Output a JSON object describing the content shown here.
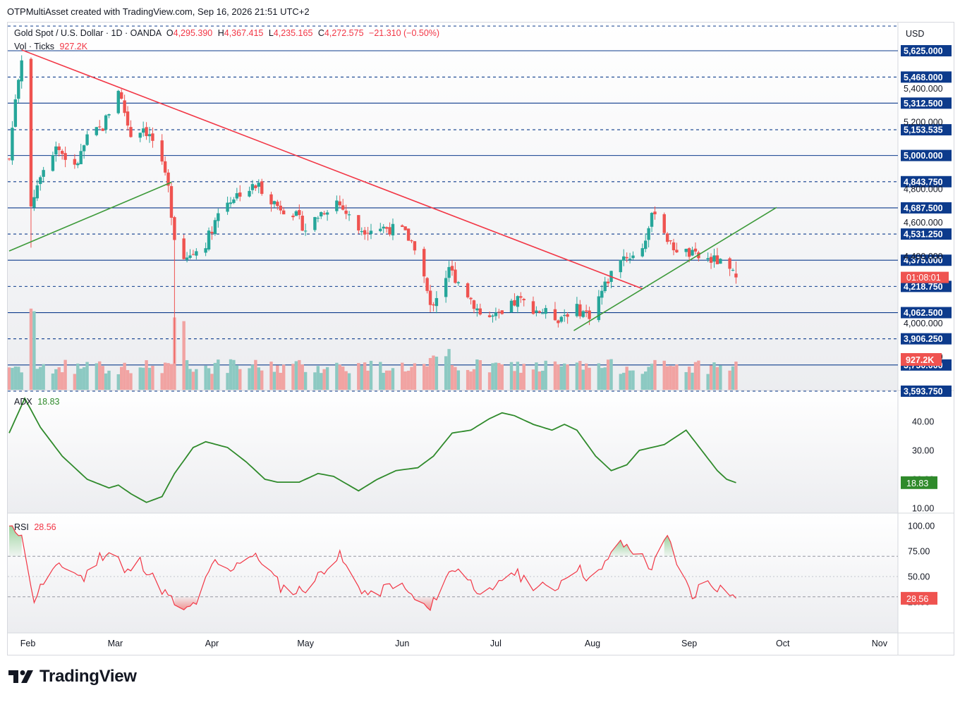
{
  "attribution": "OTPMultiAsset created with TradingView.com, Sep 16, 2026 21:51 UTC+2",
  "legend": {
    "symbol": "Gold Spot / U.S. Dollar · 1D · OANDA",
    "o_label": "O",
    "o_value": "4,295.390",
    "h_label": "H",
    "h_value": "4,367.415",
    "l_label": "L",
    "l_value": "4,235.165",
    "c_label": "C",
    "c_value": "4,272.575",
    "change": "−21.310 (−0.50%)",
    "vol_label": "Vol · Ticks",
    "vol_value": "927.2K"
  },
  "currency": "USD",
  "colors": {
    "up": "#26a69a",
    "down": "#ef5350",
    "up_vol": "#8cc9c2",
    "down_vol": "#f1a3a2",
    "level": "#0d3b8c",
    "downtrend": "#f23645",
    "uptrend": "#3d9a3a",
    "adx": "#2f8a2b",
    "rsi": "#f23645"
  },
  "price_axis": {
    "ticks": [
      "5,400.000",
      "5,200.000",
      "4,800.000",
      "4,600.000",
      "4,400.000",
      "4,000.000",
      "3,800.000"
    ],
    "levels": [
      {
        "label": "5,625.000",
        "style": "solid"
      },
      {
        "label": "5,468.000",
        "style": "dashed"
      },
      {
        "label": "5,312.500",
        "style": "solid"
      },
      {
        "label": "5,153.535",
        "style": "dashed"
      },
      {
        "label": "5,000.000",
        "style": "solid"
      },
      {
        "label": "4,843.750",
        "style": "dashed"
      },
      {
        "label": "4,687.500",
        "style": "solid"
      },
      {
        "label": "4,531.250",
        "style": "dashed"
      },
      {
        "label": "4,375.000",
        "style": "solid"
      },
      {
        "label": "4,218.750",
        "style": "dashed"
      },
      {
        "label": "4,062.500",
        "style": "solid"
      },
      {
        "label": "3,906.250",
        "style": "dashed"
      },
      {
        "label": "3,750.000",
        "style": "solid"
      },
      {
        "label": "3,593.750",
        "style": "dashed"
      }
    ],
    "last_price_countdown": "01:08:01",
    "vol_badge": "927.2K"
  },
  "adx": {
    "name": "ADX",
    "value": "18.83",
    "ticks": [
      "40.00",
      "30.00",
      "20.00",
      "10.00"
    ],
    "badge": "18.83"
  },
  "rsi": {
    "name": "RSI",
    "value": "28.56",
    "ticks": [
      "100.00",
      "75.00",
      "50.00",
      "25.00"
    ],
    "badge": "28.56"
  },
  "time_axis": [
    "Feb",
    "Mar",
    "Apr",
    "May",
    "Jun",
    "Jul",
    "Aug",
    "Sep",
    "Oct",
    "Nov"
  ],
  "brand": "TradingView",
  "chart_data": [
    {
      "type": "candlestick",
      "title": "Gold Spot / U.S. Dollar · 1D · OANDA",
      "x_range": [
        "2026-01-26",
        "2026-09-16"
      ],
      "ylim": [
        3560,
        5700
      ],
      "keyframes": [
        [
          "2026-01-26",
          4980
        ],
        [
          "2026-01-28",
          5350
        ],
        [
          "2026-01-30",
          5590
        ],
        [
          "2026-02-02",
          4700
        ],
        [
          "2026-02-05",
          4900
        ],
        [
          "2026-02-10",
          5060
        ],
        [
          "2026-02-16",
          4920
        ],
        [
          "2026-02-20",
          5100
        ],
        [
          "2026-02-25",
          5170
        ],
        [
          "2026-03-02",
          5400
        ],
        [
          "2026-03-06",
          5120
        ],
        [
          "2026-03-10",
          5170
        ],
        [
          "2026-03-14",
          5060
        ],
        [
          "2026-03-18",
          4800
        ],
        [
          "2026-03-20",
          4520
        ],
        [
          "2026-03-24",
          4380
        ],
        [
          "2026-03-30",
          4480
        ],
        [
          "2026-04-04",
          4700
        ],
        [
          "2026-04-10",
          4780
        ],
        [
          "2026-04-16",
          4820
        ],
        [
          "2026-04-22",
          4700
        ],
        [
          "2026-04-27",
          4660
        ],
        [
          "2026-05-01",
          4560
        ],
        [
          "2026-05-06",
          4660
        ],
        [
          "2026-05-11",
          4730
        ],
        [
          "2026-05-18",
          4560
        ],
        [
          "2026-05-26",
          4570
        ],
        [
          "2026-06-01",
          4550
        ],
        [
          "2026-06-06",
          4440
        ],
        [
          "2026-06-10",
          4090
        ],
        [
          "2026-06-16",
          4320
        ],
        [
          "2026-06-21",
          4200
        ],
        [
          "2026-06-27",
          4030
        ],
        [
          "2026-07-03",
          4040
        ],
        [
          "2026-07-08",
          4140
        ],
        [
          "2026-07-14",
          4080
        ],
        [
          "2026-07-21",
          4030
        ],
        [
          "2026-07-26",
          4090
        ],
        [
          "2026-07-31",
          4050
        ],
        [
          "2026-08-04",
          4190
        ],
        [
          "2026-08-10",
          4400
        ],
        [
          "2026-08-16",
          4400
        ],
        [
          "2026-08-21",
          4680
        ],
        [
          "2026-08-26",
          4460
        ],
        [
          "2026-08-31",
          4420
        ],
        [
          "2026-09-04",
          4390
        ],
        [
          "2026-09-10",
          4370
        ],
        [
          "2026-09-16",
          4272.575
        ]
      ],
      "last": {
        "date": "2026-09-16",
        "open": 4295.39,
        "high": 4367.415,
        "low": 4235.165,
        "close": 4272.575,
        "volume": "927.2K"
      },
      "trendlines": [
        {
          "name": "downtrend",
          "from": [
            "2026-01-30",
            5630
          ],
          "to": [
            "2026-08-17",
            4205
          ]
        },
        {
          "name": "uptrend-1",
          "from": [
            "2026-01-26",
            4430
          ],
          "to": [
            "2026-03-19",
            4840
          ]
        },
        {
          "name": "uptrend-2",
          "from": [
            "2026-07-26",
            3955
          ],
          "to": [
            "2026-09-29",
            4690
          ]
        }
      ]
    },
    {
      "type": "line",
      "name": "ADX",
      "ylim": [
        8,
        50
      ],
      "keyframes": [
        [
          "2026-01-26",
          36
        ],
        [
          "2026-01-31",
          48
        ],
        [
          "2026-02-05",
          38
        ],
        [
          "2026-02-12",
          28
        ],
        [
          "2026-02-20",
          20
        ],
        [
          "2026-02-27",
          17
        ],
        [
          "2026-03-02",
          18
        ],
        [
          "2026-03-06",
          15
        ],
        [
          "2026-03-11",
          12
        ],
        [
          "2026-03-16",
          14
        ],
        [
          "2026-03-20",
          22
        ],
        [
          "2026-03-26",
          31
        ],
        [
          "2026-03-30",
          33
        ],
        [
          "2026-04-06",
          31
        ],
        [
          "2026-04-12",
          26
        ],
        [
          "2026-04-18",
          20
        ],
        [
          "2026-04-22",
          19
        ],
        [
          "2026-04-29",
          19
        ],
        [
          "2026-05-05",
          22
        ],
        [
          "2026-05-10",
          21
        ],
        [
          "2026-05-18",
          16
        ],
        [
          "2026-05-24",
          20
        ],
        [
          "2026-05-30",
          23
        ],
        [
          "2026-06-06",
          24
        ],
        [
          "2026-06-11",
          28
        ],
        [
          "2026-06-17",
          36
        ],
        [
          "2026-06-23",
          37
        ],
        [
          "2026-06-29",
          41
        ],
        [
          "2026-07-03",
          43
        ],
        [
          "2026-07-07",
          42
        ],
        [
          "2026-07-13",
          39
        ],
        [
          "2026-07-19",
          37
        ],
        [
          "2026-07-23",
          39
        ],
        [
          "2026-07-27",
          37
        ],
        [
          "2026-08-02",
          28
        ],
        [
          "2026-08-07",
          23
        ],
        [
          "2026-08-12",
          25
        ],
        [
          "2026-08-16",
          30
        ],
        [
          "2026-08-20",
          31
        ],
        [
          "2026-08-24",
          32
        ],
        [
          "2026-08-31",
          37
        ],
        [
          "2026-09-05",
          30
        ],
        [
          "2026-09-10",
          23
        ],
        [
          "2026-09-13",
          20
        ],
        [
          "2026-09-16",
          18.83
        ]
      ]
    },
    {
      "type": "line",
      "name": "RSI",
      "ylim": [
        10,
        100
      ],
      "bands": [
        30,
        70
      ],
      "keyframes": [
        [
          "2026-01-26",
          98
        ],
        [
          "2026-01-30",
          94
        ],
        [
          "2026-02-01",
          45
        ],
        [
          "2026-02-03",
          28
        ],
        [
          "2026-02-08",
          55
        ],
        [
          "2026-02-13",
          60
        ],
        [
          "2026-02-19",
          48
        ],
        [
          "2026-02-24",
          70
        ],
        [
          "2026-03-01",
          77
        ],
        [
          "2026-03-04",
          52
        ],
        [
          "2026-03-09",
          65
        ],
        [
          "2026-03-14",
          45
        ],
        [
          "2026-03-18",
          30
        ],
        [
          "2026-03-23",
          14
        ],
        [
          "2026-03-27",
          25
        ],
        [
          "2026-04-02",
          65
        ],
        [
          "2026-04-06",
          55
        ],
        [
          "2026-04-12",
          72
        ],
        [
          "2026-04-17",
          66
        ],
        [
          "2026-04-23",
          40
        ],
        [
          "2026-04-28",
          35
        ],
        [
          "2026-05-03",
          42
        ],
        [
          "2026-05-08",
          62
        ],
        [
          "2026-05-12",
          70
        ],
        [
          "2026-05-17",
          43
        ],
        [
          "2026-05-22",
          30
        ],
        [
          "2026-05-30",
          45
        ],
        [
          "2026-06-05",
          28
        ],
        [
          "2026-06-10",
          16
        ],
        [
          "2026-06-14",
          48
        ],
        [
          "2026-06-19",
          60
        ],
        [
          "2026-06-24",
          40
        ],
        [
          "2026-06-30",
          32
        ],
        [
          "2026-07-05",
          57
        ],
        [
          "2026-07-09",
          50
        ],
        [
          "2026-07-14",
          40
        ],
        [
          "2026-07-20",
          38
        ],
        [
          "2026-07-26",
          62
        ],
        [
          "2026-07-31",
          48
        ],
        [
          "2026-08-04",
          55
        ],
        [
          "2026-08-08",
          82
        ],
        [
          "2026-08-12",
          80
        ],
        [
          "2026-08-16",
          72
        ],
        [
          "2026-08-20",
          58
        ],
        [
          "2026-08-25",
          88
        ],
        [
          "2026-08-30",
          50
        ],
        [
          "2026-09-02",
          30
        ],
        [
          "2026-09-06",
          48
        ],
        [
          "2026-09-10",
          40
        ],
        [
          "2026-09-13",
          38
        ],
        [
          "2026-09-16",
          28.56
        ]
      ]
    }
  ]
}
